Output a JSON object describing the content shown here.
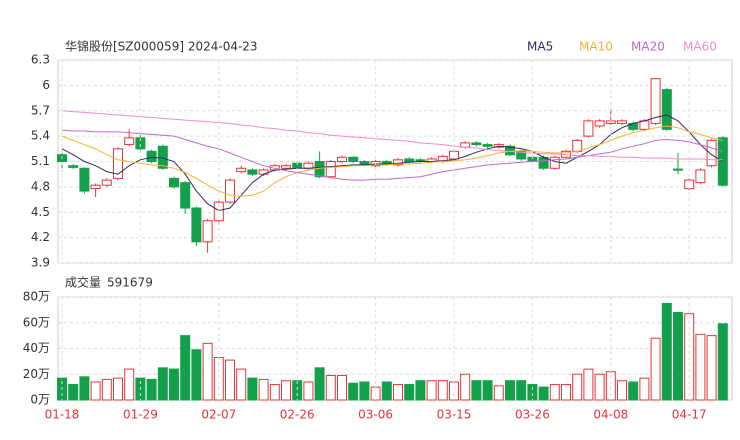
{
  "chart_data": [
    {
      "type": "candlestick",
      "title": "华锦股份[SZ000059] 2024-04-23",
      "open": [
        5.18,
        5.05,
        5.02,
        4.78,
        4.82,
        4.9,
        5.3,
        5.38,
        5.22,
        5.28,
        4.9,
        4.85,
        4.55,
        4.15,
        4.4,
        4.62,
        4.98,
        5.0,
        4.95,
        5.0,
        5.02,
        5.08,
        5.02,
        5.1,
        4.92,
        5.1,
        5.15,
        5.1,
        5.05,
        5.1,
        5.06,
        5.13,
        5.12,
        5.1,
        5.1,
        5.13,
        5.27,
        5.32,
        5.3,
        5.27,
        5.28,
        5.22,
        5.15,
        5.15,
        5.02,
        5.15,
        5.22,
        5.4,
        5.52,
        5.55,
        5.55,
        5.55,
        5.48,
        5.55,
        5.95,
        5.01,
        4.78,
        4.85,
        5.05,
        5.38
      ],
      "high": [
        5.2,
        5.07,
        5.03,
        4.84,
        4.9,
        5.27,
        5.48,
        5.44,
        5.24,
        5.3,
        4.92,
        4.87,
        4.57,
        4.42,
        4.64,
        4.9,
        5.05,
        5.02,
        5.02,
        5.07,
        5.07,
        5.1,
        5.1,
        5.22,
        5.12,
        5.17,
        5.16,
        5.12,
        5.12,
        5.12,
        5.14,
        5.15,
        5.14,
        5.15,
        5.18,
        5.24,
        5.34,
        5.34,
        5.32,
        5.32,
        5.3,
        5.24,
        5.17,
        5.17,
        5.17,
        5.24,
        5.37,
        5.6,
        5.6,
        5.72,
        5.6,
        5.57,
        5.6,
        6.08,
        5.97,
        5.2,
        4.9,
        5.02,
        5.37,
        5.4
      ],
      "low": [
        4.98,
        5.01,
        4.72,
        4.68,
        4.8,
        4.88,
        5.28,
        5.22,
        5.08,
        5.0,
        4.78,
        4.48,
        4.1,
        4.02,
        4.35,
        4.6,
        4.96,
        4.93,
        4.93,
        4.98,
        5.0,
        5.01,
        5.0,
        4.9,
        4.9,
        5.08,
        5.08,
        5.05,
        5.03,
        5.05,
        5.04,
        5.08,
        5.08,
        5.08,
        5.08,
        5.11,
        5.25,
        5.28,
        5.26,
        5.25,
        5.16,
        5.11,
        5.08,
        5.0,
        5.0,
        5.13,
        5.2,
        5.38,
        5.5,
        5.53,
        5.53,
        5.46,
        5.46,
        5.53,
        5.46,
        4.95,
        4.76,
        4.83,
        5.03,
        4.8
      ],
      "close": [
        5.1,
        5.03,
        4.75,
        4.82,
        4.88,
        5.25,
        5.38,
        5.25,
        5.1,
        5.02,
        4.8,
        4.55,
        4.15,
        4.4,
        4.62,
        4.88,
        5.02,
        4.95,
        5.0,
        5.05,
        5.05,
        5.03,
        5.08,
        4.92,
        5.1,
        5.15,
        5.1,
        5.07,
        5.1,
        5.07,
        5.12,
        5.1,
        5.1,
        5.13,
        5.16,
        5.22,
        5.32,
        5.3,
        5.28,
        5.3,
        5.18,
        5.13,
        5.1,
        5.02,
        5.15,
        5.22,
        5.35,
        5.58,
        5.58,
        5.58,
        5.58,
        5.48,
        5.58,
        6.08,
        5.48,
        5.0,
        4.88,
        5.0,
        5.35,
        4.82
      ],
      "up_color": "#e8343a",
      "down_color": "#13a04a",
      "series": [
        {
          "name": "MA5",
          "color": "#2e2e5e",
          "values": [
            5.25,
            5.18,
            5.1,
            5.05,
            4.98,
            4.95,
            5.05,
            5.12,
            5.15,
            5.14,
            5.1,
            4.95,
            4.75,
            4.6,
            4.52,
            4.55,
            4.7,
            4.85,
            4.95,
            5.0,
            5.01,
            5.02,
            5.02,
            5.03,
            5.04,
            5.05,
            5.06,
            5.06,
            5.07,
            5.07,
            5.08,
            5.09,
            5.1,
            5.1,
            5.11,
            5.12,
            5.16,
            5.21,
            5.25,
            5.28,
            5.27,
            5.25,
            5.22,
            5.15,
            5.1,
            5.08,
            5.15,
            5.22,
            5.3,
            5.42,
            5.5,
            5.55,
            5.58,
            5.62,
            5.65,
            5.58,
            5.45,
            5.3,
            5.18,
            5.1
          ]
        },
        {
          "name": "MA10",
          "color": "#f5b335",
          "values": [
            5.4,
            5.35,
            5.3,
            5.25,
            5.18,
            5.12,
            5.1,
            5.08,
            5.06,
            5.05,
            5.02,
            4.97,
            4.9,
            4.82,
            4.75,
            4.7,
            4.69,
            4.7,
            4.75,
            4.85,
            4.92,
            4.97,
            5.0,
            5.02,
            5.03,
            5.04,
            5.05,
            5.05,
            5.06,
            5.06,
            5.07,
            5.07,
            5.08,
            5.09,
            5.1,
            5.11,
            5.12,
            5.14,
            5.17,
            5.2,
            5.22,
            5.23,
            5.22,
            5.21,
            5.2,
            5.2,
            5.22,
            5.26,
            5.3,
            5.35,
            5.4,
            5.44,
            5.47,
            5.5,
            5.52,
            5.5,
            5.45,
            5.42,
            5.38,
            5.35
          ]
        },
        {
          "name": "MA20",
          "color": "#b86bd6",
          "values": [
            5.47,
            5.46,
            5.46,
            5.45,
            5.45,
            5.45,
            5.44,
            5.43,
            5.42,
            5.41,
            5.4,
            5.36,
            5.32,
            5.28,
            5.25,
            5.2,
            5.15,
            5.1,
            5.05,
            5.02,
            4.99,
            4.97,
            4.95,
            4.93,
            4.91,
            4.89,
            4.88,
            4.88,
            4.89,
            4.89,
            4.9,
            4.91,
            4.92,
            4.95,
            4.98,
            5.0,
            5.02,
            5.04,
            5.06,
            5.07,
            5.08,
            5.09,
            5.1,
            5.11,
            5.12,
            5.13,
            5.15,
            5.17,
            5.19,
            5.21,
            5.25,
            5.28,
            5.31,
            5.35,
            5.36,
            5.35,
            5.33,
            5.3,
            5.26,
            5.22
          ]
        },
        {
          "name": "MA60",
          "color": "#f28ccb",
          "values": [
            5.7,
            5.69,
            5.68,
            5.67,
            5.66,
            5.65,
            5.64,
            5.63,
            5.62,
            5.61,
            5.6,
            5.59,
            5.58,
            5.57,
            5.56,
            5.55,
            5.53,
            5.52,
            5.5,
            5.49,
            5.47,
            5.46,
            5.44,
            5.43,
            5.41,
            5.4,
            5.39,
            5.38,
            5.37,
            5.36,
            5.35,
            5.34,
            5.32,
            5.31,
            5.3,
            5.28,
            5.27,
            5.26,
            5.24,
            5.23,
            5.22,
            5.21,
            5.2,
            5.19,
            5.19,
            5.18,
            5.17,
            5.17,
            5.16,
            5.16,
            5.15,
            5.15,
            5.14,
            5.14,
            5.14,
            5.13,
            5.13,
            5.13,
            5.12,
            5.12
          ]
        }
      ],
      "ylim": [
        3.9,
        6.3
      ],
      "yticks": [
        6.3,
        6,
        5.7,
        5.4,
        5.1,
        4.8,
        4.5,
        4.2,
        3.9
      ],
      "grid": true
    },
    {
      "type": "bar",
      "title": "成交量",
      "categories": [
        "01-18",
        null,
        null,
        null,
        null,
        null,
        null,
        "01-29",
        null,
        null,
        null,
        null,
        null,
        null,
        "02-07",
        null,
        null,
        null,
        null,
        null,
        null,
        "02-26",
        null,
        null,
        null,
        null,
        null,
        null,
        "03-06",
        null,
        null,
        null,
        null,
        null,
        null,
        "03-15",
        null,
        null,
        null,
        null,
        null,
        null,
        "03-26",
        null,
        null,
        null,
        null,
        null,
        null,
        "04-08",
        null,
        null,
        null,
        null,
        null,
        null,
        "04-17",
        null,
        null,
        null
      ],
      "values": [
        170000,
        120000,
        180000,
        140000,
        160000,
        170000,
        240000,
        170000,
        160000,
        250000,
        240000,
        500000,
        390000,
        440000,
        330000,
        310000,
        240000,
        170000,
        160000,
        120000,
        150000,
        150000,
        140000,
        250000,
        190000,
        190000,
        130000,
        140000,
        100000,
        140000,
        120000,
        120000,
        150000,
        150000,
        150000,
        140000,
        200000,
        150000,
        150000,
        110000,
        150000,
        150000,
        120000,
        100000,
        120000,
        120000,
        200000,
        240000,
        200000,
        220000,
        150000,
        140000,
        170000,
        480000,
        750000,
        680000,
        670000,
        510000,
        500000,
        591679
      ],
      "label_color": "#e8343a",
      "ylim": [
        0,
        800000
      ],
      "yticks": [
        {
          "value": 800000,
          "label": "80万"
        },
        {
          "value": 600000,
          "label": "60万"
        },
        {
          "value": 400000,
          "label": "40万"
        },
        {
          "value": 200000,
          "label": "20万"
        },
        {
          "value": 0,
          "label": "0万"
        }
      ],
      "grid": true
    }
  ]
}
